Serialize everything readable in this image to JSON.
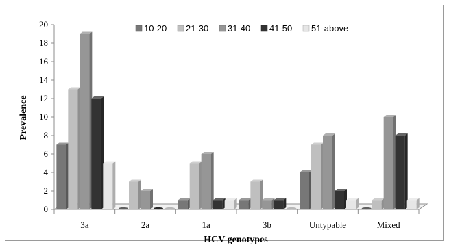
{
  "chart_data": {
    "type": "bar",
    "title": "",
    "xlabel": "HCV genotypes",
    "ylabel": "Prevalence",
    "ylim": [
      0,
      20
    ],
    "yticks": [
      0,
      2,
      4,
      6,
      8,
      10,
      12,
      14,
      16,
      18,
      20
    ],
    "grid": false,
    "legend_position": "top",
    "categories": [
      "3a",
      "2a",
      "1a",
      "3b",
      "Untypable",
      "Mixed"
    ],
    "series": [
      {
        "name": "10-20",
        "color": "#777777",
        "values": [
          7,
          0,
          1,
          1,
          4,
          0
        ]
      },
      {
        "name": "21-30",
        "color": "#bfbfbf",
        "values": [
          13,
          3,
          5,
          3,
          7,
          1
        ]
      },
      {
        "name": "31-40",
        "color": "#969696",
        "values": [
          19,
          2,
          6,
          1,
          8,
          10
        ]
      },
      {
        "name": "41-50",
        "color": "#333333",
        "values": [
          12,
          0,
          1,
          1,
          2,
          8
        ]
      },
      {
        "name": "51-above",
        "color": "#e6e6e6",
        "values": [
          5,
          0,
          1,
          0,
          1,
          1
        ]
      }
    ]
  }
}
